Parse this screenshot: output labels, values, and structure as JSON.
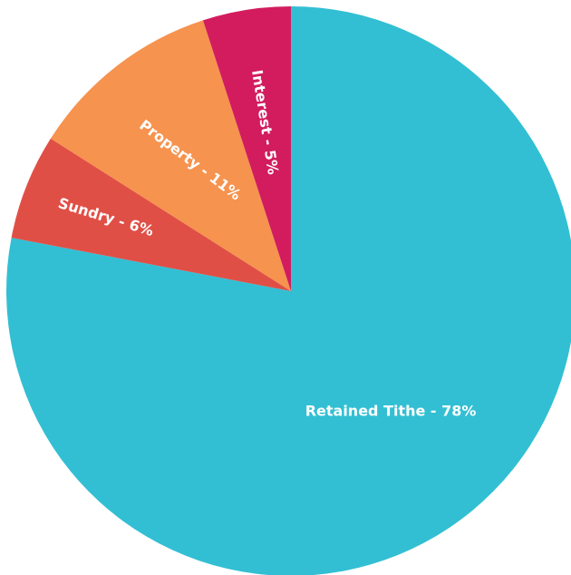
{
  "chart_data": {
    "type": "pie",
    "title": "",
    "slices": [
      {
        "label": "Retained Tithe - 78%",
        "value": 78,
        "color": "#32bfd3"
      },
      {
        "label": "Sundry - 6%",
        "value": 6,
        "color": "#e04f46"
      },
      {
        "label": "Property - 11%",
        "value": 11,
        "color": "#f6934f"
      },
      {
        "label": "Interest - 5%",
        "value": 5,
        "color": "#d21c5e"
      }
    ],
    "start_angle": "12 o'clock",
    "direction": "clockwise",
    "legend": "none",
    "labels": "inside slices"
  }
}
